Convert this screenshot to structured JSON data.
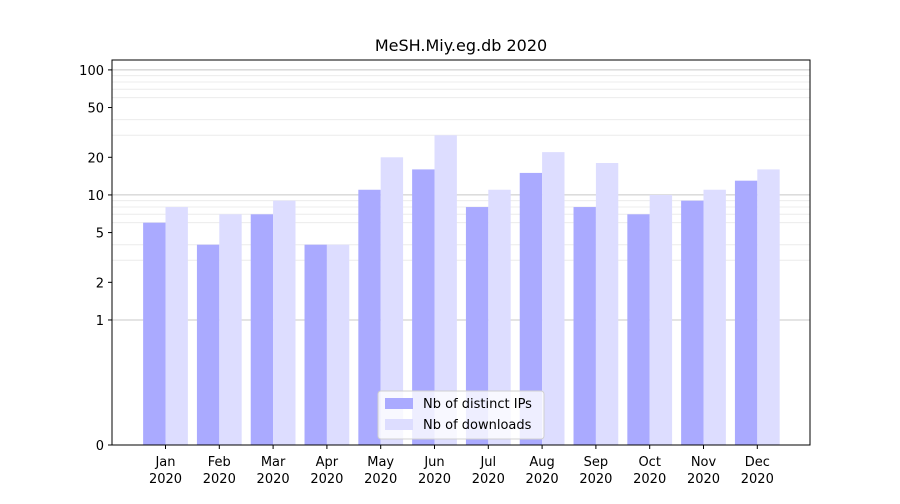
{
  "chart_data": {
    "type": "bar",
    "title": "MeSH.Miy.eg.db 2020",
    "xlabel": "",
    "ylabel": "",
    "yscale": "symlog",
    "ylim": [
      0,
      120
    ],
    "yticks": [
      0,
      1,
      2,
      5,
      10,
      20,
      50,
      100
    ],
    "grid": true,
    "legend_position": "bottom-center",
    "categories": [
      [
        "Jan",
        "2020"
      ],
      [
        "Feb",
        "2020"
      ],
      [
        "Mar",
        "2020"
      ],
      [
        "Apr",
        "2020"
      ],
      [
        "May",
        "2020"
      ],
      [
        "Jun",
        "2020"
      ],
      [
        "Jul",
        "2020"
      ],
      [
        "Aug",
        "2020"
      ],
      [
        "Sep",
        "2020"
      ],
      [
        "Oct",
        "2020"
      ],
      [
        "Nov",
        "2020"
      ],
      [
        "Dec",
        "2020"
      ]
    ],
    "series": [
      {
        "name": "Nb of distinct IPs",
        "color": "#aaaaff",
        "values": [
          6,
          4,
          7,
          4,
          11,
          16,
          8,
          15,
          8,
          7,
          9,
          13
        ]
      },
      {
        "name": "Nb of downloads",
        "color": "#ddddff",
        "values": [
          8,
          7,
          9,
          4,
          20,
          30,
          11,
          22,
          18,
          10,
          11,
          16
        ]
      }
    ]
  }
}
